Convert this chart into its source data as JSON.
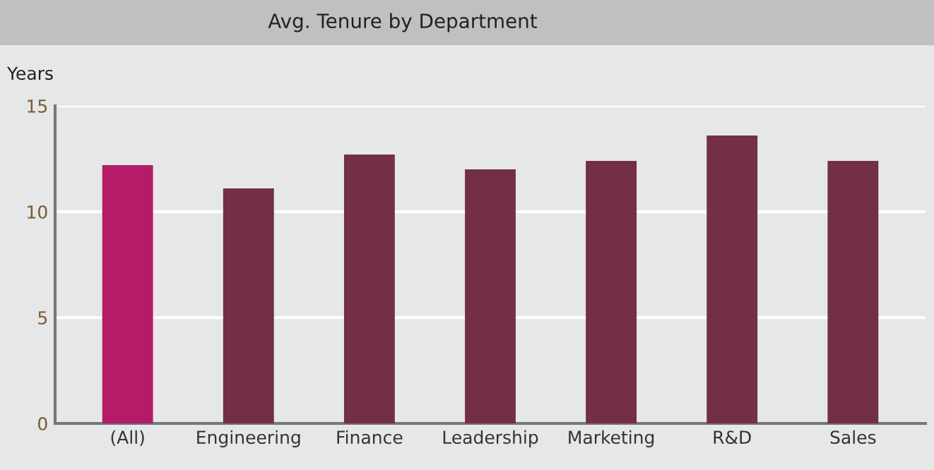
{
  "chart_data": {
    "type": "bar",
    "title": "Avg. Tenure by Department",
    "ylabel": "Years",
    "categories": [
      "(All)",
      "Engineering",
      "Finance",
      "Leadership",
      "Marketing",
      "R&D",
      "Sales"
    ],
    "values": [
      12.2,
      11.1,
      12.7,
      12.0,
      12.4,
      13.6,
      12.4
    ],
    "colors": [
      "#b41c68",
      "#722f46",
      "#722f46",
      "#722f46",
      "#722f46",
      "#722f46",
      "#722f46"
    ],
    "ylim": [
      0,
      15
    ],
    "yticks": [
      0,
      5,
      10,
      15
    ],
    "grid": "y"
  }
}
